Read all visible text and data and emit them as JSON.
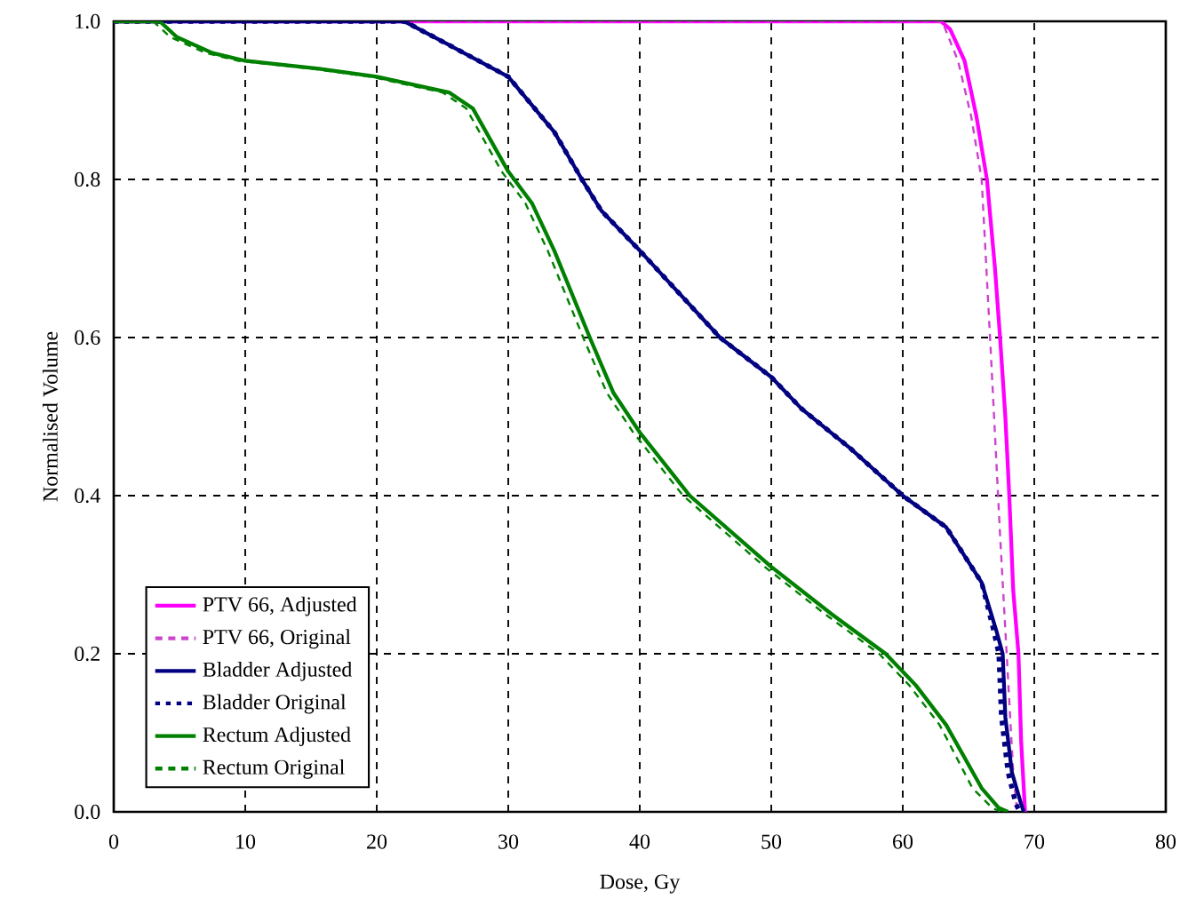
{
  "chart_data": {
    "type": "line",
    "xlabel": "Dose, Gy",
    "ylabel": "Normalised Volume",
    "xlim": [
      0,
      80
    ],
    "ylim": [
      0,
      1
    ],
    "xticks": [
      0,
      10,
      20,
      30,
      40,
      50,
      60,
      70,
      80
    ],
    "yticks": [
      {
        "value": 0,
        "label": "0.0"
      },
      {
        "value": 0.2,
        "label": "0.2"
      },
      {
        "value": 0.4,
        "label": "0.4"
      },
      {
        "value": 0.6,
        "label": "0.6"
      },
      {
        "value": 0.8,
        "label": "0.8"
      },
      {
        "value": 1,
        "label": "1.0"
      }
    ],
    "grid": true,
    "legend": "bottom left",
    "marker": "none",
    "series": [
      {
        "name": "PTV 66, Adjusted",
        "color": "#ff00ff",
        "line_style": "solid",
        "x": [
          0,
          62.9,
          63.6,
          64.7,
          65.6,
          66.4,
          67.0,
          67.4,
          67.8,
          68.1,
          68.4,
          68.8,
          69.0,
          69.3
        ],
        "values": [
          1,
          1,
          0.99,
          0.95,
          0.88,
          0.8,
          0.69,
          0.6,
          0.5,
          0.4,
          0.28,
          0.2,
          0.09,
          0
        ]
      },
      {
        "name": "PTV 66, Original",
        "color": "#cc44cc",
        "line_style": "dashed",
        "x": [
          0,
          63.0,
          64.2,
          65.2,
          66.0,
          66.7,
          67.4,
          67.9,
          68.4,
          68.7
        ],
        "values": [
          1,
          1,
          0.95,
          0.88,
          0.8,
          0.58,
          0.35,
          0.2,
          0.05,
          0
        ]
      },
      {
        "name": "Bladder Adjusted",
        "color": "#000080",
        "line_style": "solid",
        "x": [
          0,
          22.1,
          25.5,
          30,
          33.5,
          35.6,
          37.1,
          40,
          46.1,
          50,
          52.3,
          56,
          60,
          63.3,
          66,
          67.1,
          67.6,
          67.8,
          68.3,
          69,
          69.2
        ],
        "values": [
          1,
          1,
          0.97,
          0.93,
          0.86,
          0.8,
          0.76,
          0.71,
          0.6,
          0.55,
          0.51,
          0.46,
          0.4,
          0.36,
          0.29,
          0.23,
          0.2,
          0.12,
          0.05,
          0.01,
          0
        ]
      },
      {
        "name": "Bladder Original",
        "color": "#000080",
        "line_style": "dotted",
        "x": [
          0,
          22.1,
          25.5,
          30,
          33.5,
          35.6,
          37.1,
          40,
          46.1,
          50,
          52.3,
          56,
          60,
          63.3,
          66,
          66.9,
          67.3,
          67.5,
          68.0,
          68.6,
          68.9
        ],
        "values": [
          1,
          1,
          0.97,
          0.93,
          0.86,
          0.8,
          0.76,
          0.71,
          0.6,
          0.55,
          0.51,
          0.46,
          0.4,
          0.36,
          0.29,
          0.23,
          0.2,
          0.12,
          0.05,
          0.01,
          0
        ]
      },
      {
        "name": "Rectum Adjusted",
        "color": "#008000",
        "line_style": "solid",
        "x": [
          0,
          3.5,
          4.8,
          7.5,
          10,
          15.6,
          20,
          25.5,
          27.3,
          30,
          31.8,
          33.5,
          36.2,
          38,
          40,
          43.8,
          50,
          54.6,
          58.7,
          61,
          63.3,
          66,
          67.3,
          68
        ],
        "values": [
          1,
          1,
          0.98,
          0.96,
          0.95,
          0.94,
          0.93,
          0.91,
          0.89,
          0.81,
          0.77,
          0.71,
          0.6,
          0.53,
          0.48,
          0.4,
          0.31,
          0.25,
          0.2,
          0.16,
          0.11,
          0.03,
          0.005,
          0
        ]
      },
      {
        "name": "Rectum Original",
        "color": "#008000",
        "line_style": "dashed",
        "x": [
          0,
          3.0,
          4.3,
          7.0,
          9.5,
          15.1,
          19.5,
          25.0,
          26.8,
          29.5,
          31.3,
          33.0,
          35.7,
          37.5,
          39.5,
          43.3,
          49.5,
          54.1,
          58.2,
          60.5,
          62.8,
          65.3,
          66.8,
          67.5
        ],
        "values": [
          1,
          1,
          0.98,
          0.96,
          0.95,
          0.94,
          0.93,
          0.91,
          0.89,
          0.81,
          0.77,
          0.71,
          0.6,
          0.53,
          0.48,
          0.4,
          0.31,
          0.25,
          0.2,
          0.16,
          0.11,
          0.03,
          0.005,
          0
        ]
      }
    ]
  }
}
